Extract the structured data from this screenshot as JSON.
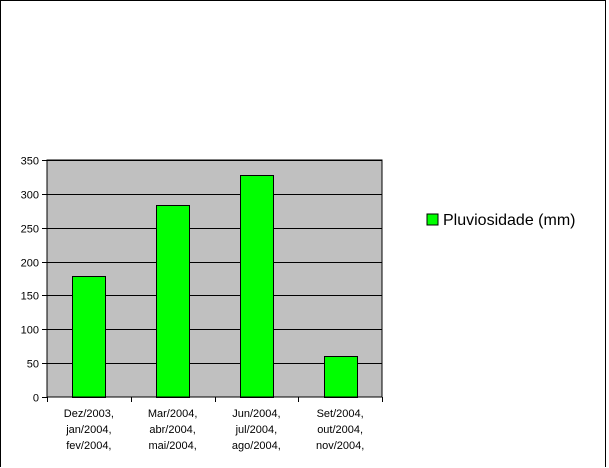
{
  "chart_data": {
    "type": "bar",
    "title": "",
    "xlabel": "",
    "ylabel": "",
    "categories": [
      [
        "Dez/2003,",
        "jan/2004,",
        "fev/2004,"
      ],
      [
        "Mar/2004,",
        "abr/2004,",
        "mai/2004,"
      ],
      [
        "Jun/2004,",
        "jul/2004,",
        "ago/2004,"
      ],
      [
        "Set/2004,",
        "out/2004,",
        "nov/2004,"
      ]
    ],
    "series": [
      {
        "name": "Pluviosidade (mm)",
        "values": [
          179,
          284,
          328,
          60
        ]
      }
    ],
    "ylim": [
      0,
      350
    ],
    "yticks": [
      0,
      50,
      100,
      150,
      200,
      250,
      300,
      350
    ],
    "grid": true,
    "legend": "right",
    "colors": {
      "bar": "#00ff00",
      "plot_background": "#c0c0c0",
      "gridline": "#000000"
    }
  }
}
